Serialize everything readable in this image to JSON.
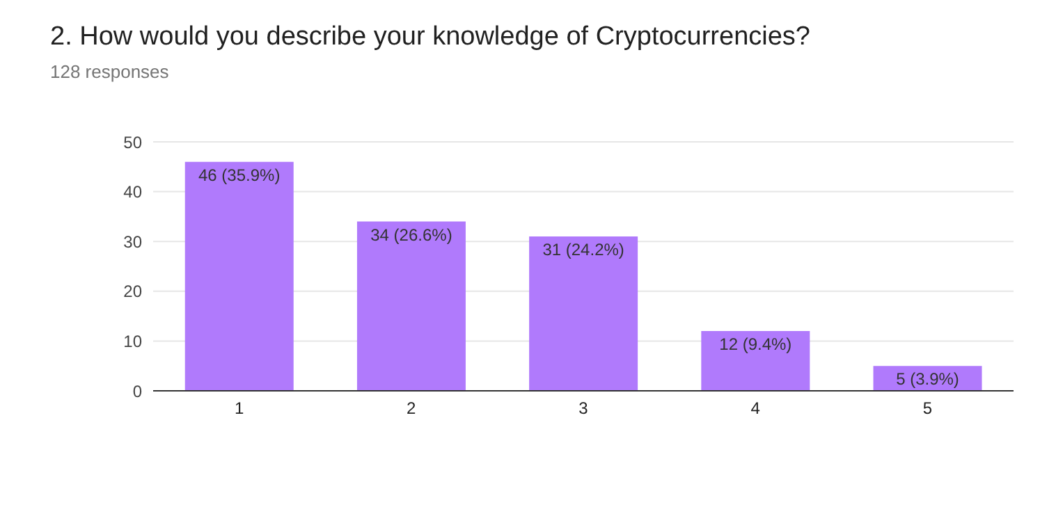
{
  "chart_data": {
    "type": "bar",
    "title": "2. How would you describe your knowledge of Cryptocurrencies?",
    "subtitle": "128 responses",
    "categories": [
      "1",
      "2",
      "3",
      "4",
      "5"
    ],
    "values": [
      46,
      34,
      31,
      12,
      5
    ],
    "value_labels": [
      "46 (35.9%)",
      "34 (26.6%)",
      "31 (24.2%)",
      "12 (9.4%)",
      "5 (3.9%)"
    ],
    "color": "#b07afc",
    "ylim": [
      0,
      50
    ],
    "yticks": [
      0,
      10,
      20,
      30,
      40,
      50
    ],
    "grid": "y"
  }
}
